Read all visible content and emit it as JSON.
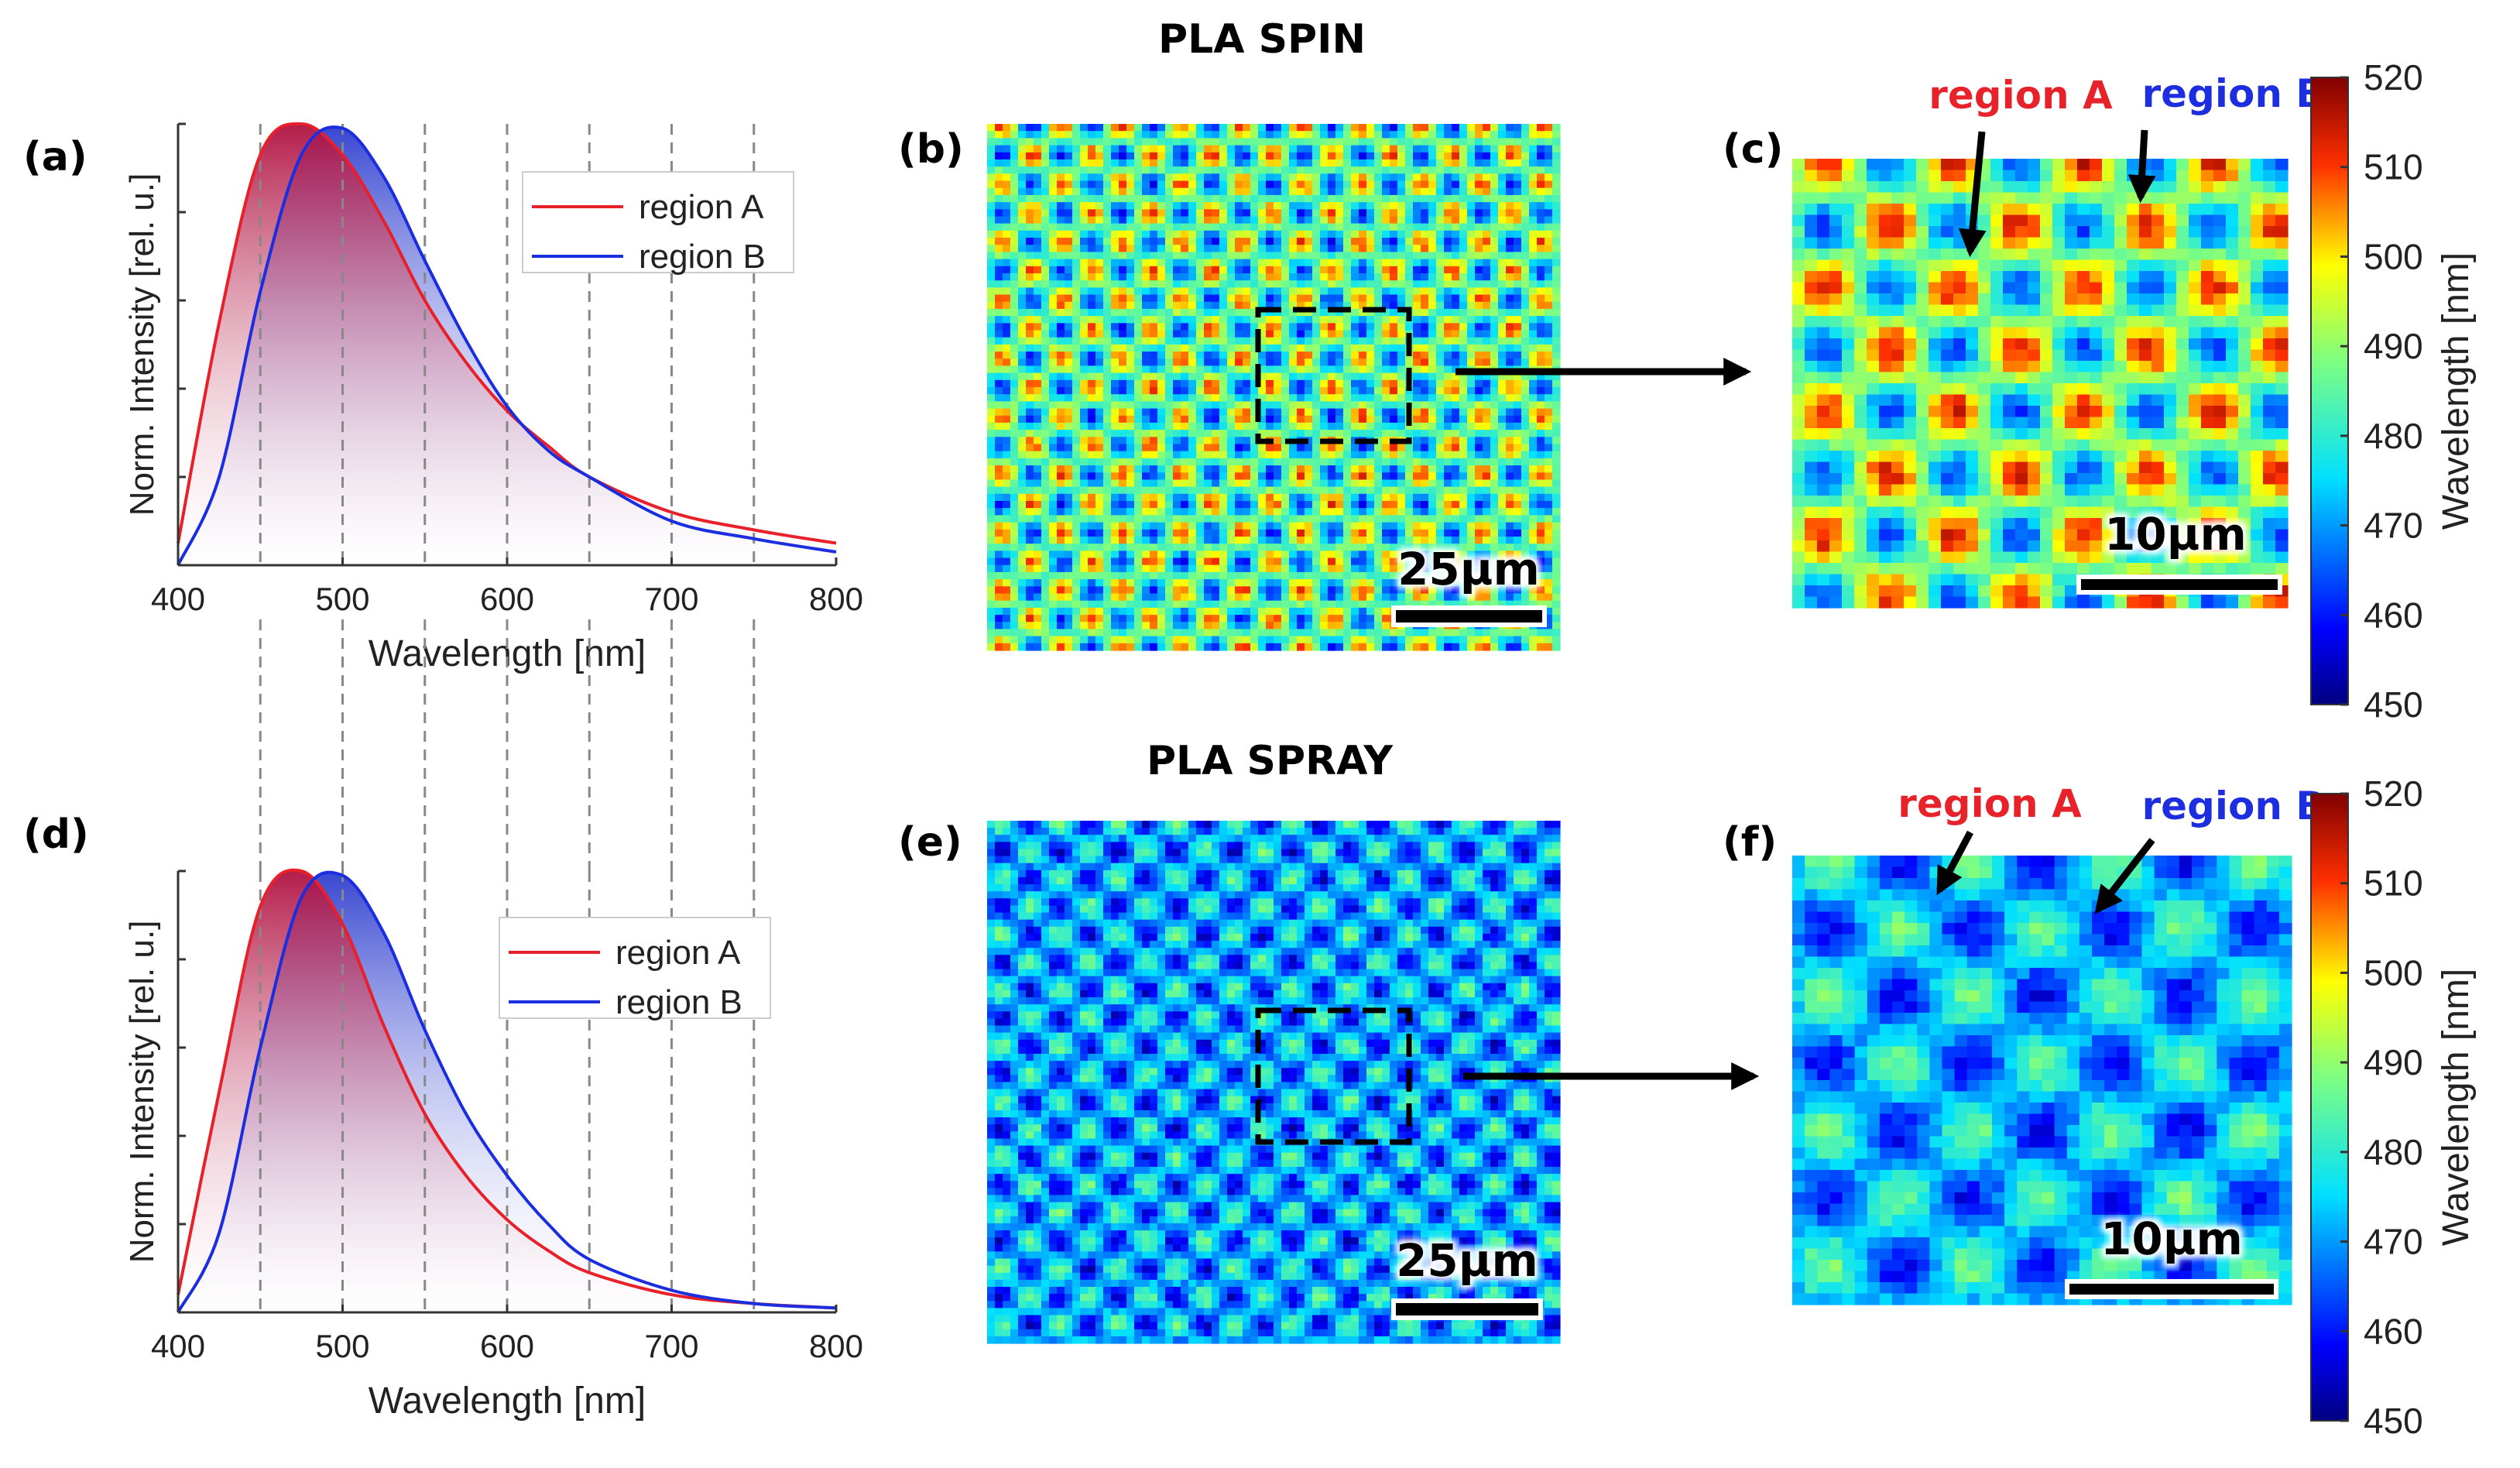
{
  "headings": {
    "spin": "PLA SPIN",
    "spray": "PLA SPRAY"
  },
  "panel_labels": {
    "a": "(a)",
    "b": "(b)",
    "c": "(c)",
    "d": "(d)",
    "e": "(e)",
    "f": "(f)"
  },
  "region_labels": {
    "a": "region A",
    "b": "region B"
  },
  "scale_bars": {
    "large": "25µm",
    "small": "10µm"
  },
  "colorbar": {
    "label": "Wavelength [nm]",
    "ticks": [
      "450",
      "460",
      "470",
      "480",
      "490",
      "500",
      "510",
      "520"
    ],
    "range": [
      450,
      520
    ]
  },
  "colors": {
    "region_a": "#e8202a",
    "region_b": "#1a2ee0",
    "fill_dark": "#b01040"
  },
  "chart_data": [
    {
      "panel": "(a)",
      "type": "line",
      "title": "",
      "xlabel": "Wavelength [nm]",
      "ylabel": "Norm. Intensity [rel. u.]",
      "xlim": [
        400,
        800
      ],
      "ylim": [
        0,
        1
      ],
      "xticks": [
        "400",
        "500",
        "600",
        "700",
        "800"
      ],
      "dashed_x": [
        450,
        500,
        550,
        600,
        650,
        700,
        750
      ],
      "legend_position": "top-right",
      "series": [
        {
          "name": "region A",
          "x": [
            400,
            425,
            450,
            475,
            500,
            525,
            550,
            575,
            600,
            625,
            650,
            700,
            750,
            800
          ],
          "values": [
            0.05,
            0.55,
            0.93,
            1.0,
            0.93,
            0.78,
            0.6,
            0.46,
            0.35,
            0.27,
            0.2,
            0.12,
            0.08,
            0.05
          ]
        },
        {
          "name": "region B",
          "x": [
            400,
            425,
            450,
            475,
            500,
            525,
            550,
            575,
            600,
            625,
            650,
            700,
            750,
            800
          ],
          "values": [
            0.0,
            0.2,
            0.62,
            0.93,
            0.99,
            0.88,
            0.69,
            0.51,
            0.36,
            0.26,
            0.2,
            0.1,
            0.06,
            0.03
          ]
        }
      ]
    },
    {
      "panel": "(d)",
      "type": "line",
      "title": "",
      "xlabel": "Wavelength [nm]",
      "ylabel": "Norm. Intensity [rel. u.]",
      "xlim": [
        400,
        800
      ],
      "ylim": [
        0,
        1
      ],
      "xticks": [
        "400",
        "500",
        "600",
        "700",
        "800"
      ],
      "dashed_x": [
        450,
        500,
        550,
        600,
        650,
        700,
        750
      ],
      "legend_position": "top-right",
      "series": [
        {
          "name": "region A",
          "x": [
            400,
            425,
            450,
            475,
            500,
            525,
            550,
            575,
            600,
            625,
            650,
            700,
            750,
            800
          ],
          "values": [
            0.04,
            0.5,
            0.92,
            1.0,
            0.88,
            0.65,
            0.45,
            0.31,
            0.21,
            0.14,
            0.09,
            0.04,
            0.02,
            0.01
          ]
        },
        {
          "name": "region B",
          "x": [
            400,
            425,
            450,
            475,
            500,
            525,
            550,
            575,
            600,
            625,
            650,
            700,
            750,
            800
          ],
          "values": [
            0.0,
            0.18,
            0.6,
            0.94,
            0.99,
            0.86,
            0.64,
            0.45,
            0.31,
            0.2,
            0.12,
            0.05,
            0.02,
            0.01
          ]
        }
      ]
    }
  ]
}
